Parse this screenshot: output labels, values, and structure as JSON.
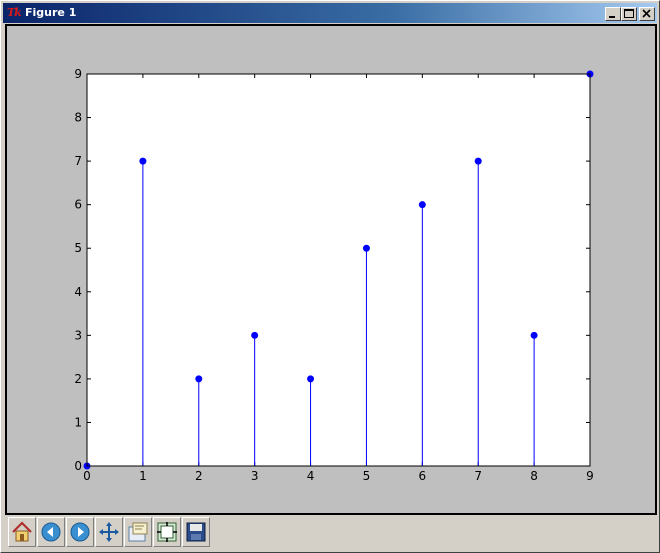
{
  "window": {
    "title": "Figure 1",
    "app_icon": "tk-icon",
    "controls": [
      "minimize-icon",
      "maximize-icon",
      "close-icon"
    ]
  },
  "figure": {
    "background_color": "#bfbfbf",
    "axes_background": "#ffffff"
  },
  "chart_data": {
    "type": "stem",
    "x": [
      0,
      1,
      2,
      3,
      4,
      5,
      6,
      7,
      8,
      9
    ],
    "values": [
      0,
      7,
      2,
      3,
      2,
      5,
      6,
      7,
      3,
      9
    ],
    "xlim": [
      0,
      9
    ],
    "ylim": [
      0,
      9
    ],
    "xticks": [
      "0",
      "1",
      "2",
      "3",
      "4",
      "5",
      "6",
      "7",
      "8",
      "9"
    ],
    "yticks": [
      "0",
      "1",
      "2",
      "3",
      "4",
      "5",
      "6",
      "7",
      "8",
      "9"
    ],
    "title": "",
    "xlabel": "",
    "ylabel": "",
    "grid": false,
    "marker_color": "#0000ff",
    "stem_color": "#0000ff",
    "baseline_color": "#ff0000"
  },
  "toolbar": {
    "buttons": [
      {
        "name": "home-icon",
        "tooltip": "Home"
      },
      {
        "name": "back-icon",
        "tooltip": "Back"
      },
      {
        "name": "forward-icon",
        "tooltip": "Forward"
      },
      {
        "name": "pan-icon",
        "tooltip": "Pan"
      },
      {
        "name": "zoom-icon",
        "tooltip": "Zoom"
      },
      {
        "name": "subplots-icon",
        "tooltip": "Subplots"
      },
      {
        "name": "save-icon",
        "tooltip": "Save"
      }
    ]
  }
}
